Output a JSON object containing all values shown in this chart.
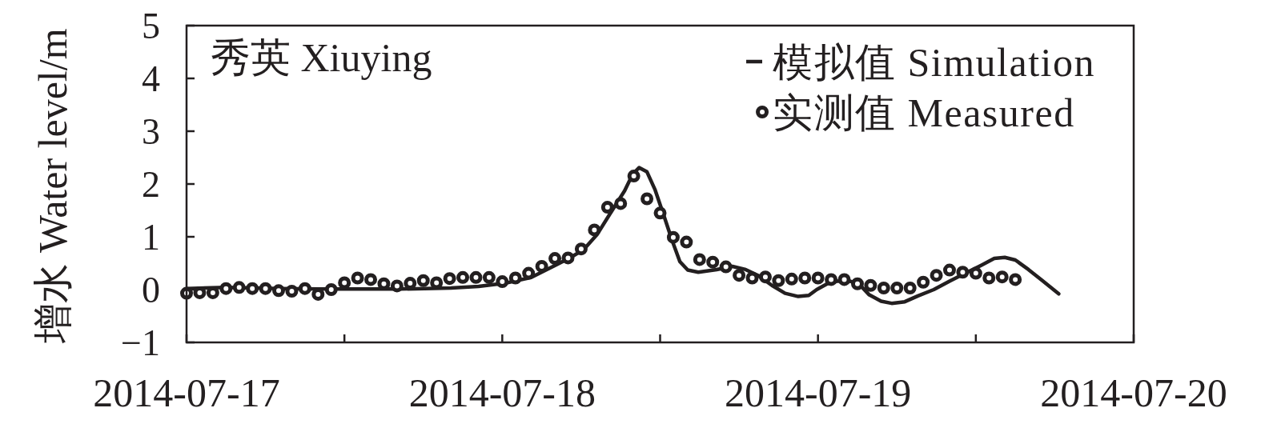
{
  "chart_data": {
    "type": "line",
    "title": "秀英 Xiuying",
    "ylabel": "增水 Water level/m",
    "xlim": [
      "2014-07-17T00:00",
      "2014-07-20T00:00"
    ],
    "xticks": [
      "2014-07-17",
      {
        "value": "2014-07-17T12:00",
        "label": null
      },
      "2014-07-18",
      {
        "value": "2014-07-18T12:00",
        "label": null
      },
      "2014-07-19",
      {
        "value": "2014-07-19T12:00",
        "label": null
      },
      "2014-07-20"
    ],
    "ylim": [
      -1,
      5
    ],
    "yticks": [
      {
        "value": -1,
        "label": "−1"
      },
      0,
      1,
      2,
      3,
      4,
      5
    ],
    "legend": "top right",
    "series": [
      {
        "name": "模拟值 Simulation",
        "type": "line",
        "color": "#231f20",
        "line_style": "solid",
        "x": [
          "2014-07-17T00:00",
          "2014-07-17T03:00",
          "2014-07-17T07:06",
          "2014-07-17T10:06",
          "2014-07-17T16:12",
          "2014-07-17T20:06",
          "2014-07-17T22:12",
          "2014-07-18T00:12",
          "2014-07-18T02:12",
          "2014-07-18T04:12",
          "2014-07-18T05:12",
          "2014-07-18T06:12",
          "2014-07-18T07:12",
          "2014-07-18T08:12",
          "2014-07-18T09:18",
          "2014-07-18T09:54",
          "2014-07-18T10:24",
          "2014-07-18T11:00",
          "2014-07-18T11:36",
          "2014-07-18T12:18",
          "2014-07-18T12:54",
          "2014-07-18T13:30",
          "2014-07-18T14:06",
          "2014-07-18T14:54",
          "2014-07-18T16:18",
          "2014-07-18T17:30",
          "2014-07-18T18:30",
          "2014-07-18T19:30",
          "2014-07-18T20:30",
          "2014-07-18T21:30",
          "2014-07-18T22:30",
          "2014-07-18T23:18",
          "2014-07-18T23:54",
          "2014-07-19T00:42",
          "2014-07-19T01:30",
          "2014-07-19T02:18",
          "2014-07-19T03:06",
          "2014-07-19T03:54",
          "2014-07-19T04:48",
          "2014-07-19T05:36",
          "2014-07-19T06:36",
          "2014-07-19T07:36",
          "2014-07-19T08:48",
          "2014-07-19T10:00",
          "2014-07-19T11:12",
          "2014-07-19T12:24",
          "2014-07-19T13:24",
          "2014-07-19T14:12",
          "2014-07-19T15:00",
          "2014-07-19T16:00",
          "2014-07-19T17:00",
          "2014-07-19T18:18"
        ],
        "values": [
          0.02,
          0.04,
          0.02,
          0.01,
          0.01,
          0.03,
          0.06,
          0.12,
          0.23,
          0.48,
          0.61,
          0.76,
          1.04,
          1.44,
          1.87,
          2.18,
          2.31,
          2.23,
          1.9,
          1.39,
          0.94,
          0.53,
          0.37,
          0.33,
          0.38,
          0.44,
          0.38,
          0.26,
          0.08,
          -0.07,
          -0.13,
          -0.11,
          0.0,
          0.11,
          0.16,
          0.17,
          0.11,
          -0.1,
          -0.22,
          -0.26,
          -0.23,
          -0.12,
          0.0,
          0.16,
          0.31,
          0.46,
          0.59,
          0.61,
          0.56,
          0.38,
          0.18,
          -0.08
        ]
      },
      {
        "name": "实测值 Measured",
        "type": "scatter",
        "color": "#231f20",
        "marker": "circle",
        "x": [
          "2014-07-17T00:00",
          "2014-07-17T01:00",
          "2014-07-17T02:00",
          "2014-07-17T03:00",
          "2014-07-17T04:00",
          "2014-07-17T05:00",
          "2014-07-17T06:00",
          "2014-07-17T07:00",
          "2014-07-17T08:00",
          "2014-07-17T09:00",
          "2014-07-17T10:00",
          "2014-07-17T11:00",
          "2014-07-17T12:00",
          "2014-07-17T13:00",
          "2014-07-17T14:00",
          "2014-07-17T15:00",
          "2014-07-17T16:00",
          "2014-07-17T17:00",
          "2014-07-17T18:00",
          "2014-07-17T19:00",
          "2014-07-17T20:00",
          "2014-07-17T21:00",
          "2014-07-17T22:00",
          "2014-07-17T23:00",
          "2014-07-18T00:00",
          "2014-07-18T01:00",
          "2014-07-18T02:00",
          "2014-07-18T03:00",
          "2014-07-18T04:00",
          "2014-07-18T05:00",
          "2014-07-18T06:00",
          "2014-07-18T07:00",
          "2014-07-18T08:00",
          "2014-07-18T09:00",
          "2014-07-18T10:00",
          "2014-07-18T11:00",
          "2014-07-18T12:00",
          "2014-07-18T13:00",
          "2014-07-18T14:00",
          "2014-07-18T15:00",
          "2014-07-18T16:00",
          "2014-07-18T17:00",
          "2014-07-18T18:00",
          "2014-07-18T19:00",
          "2014-07-18T20:00",
          "2014-07-18T21:00",
          "2014-07-18T22:00",
          "2014-07-18T23:00",
          "2014-07-19T00:00",
          "2014-07-19T01:00",
          "2014-07-19T02:00",
          "2014-07-19T03:00",
          "2014-07-19T04:00",
          "2014-07-19T05:00",
          "2014-07-19T06:00",
          "2014-07-19T07:00",
          "2014-07-19T08:00",
          "2014-07-19T09:00",
          "2014-07-19T10:00",
          "2014-07-19T11:00",
          "2014-07-19T12:00",
          "2014-07-19T13:00",
          "2014-07-19T14:00",
          "2014-07-19T15:00"
        ],
        "values": [
          -0.07,
          -0.06,
          -0.06,
          0.02,
          0.04,
          0.02,
          0.02,
          -0.02,
          -0.03,
          0.02,
          -0.09,
          0.0,
          0.13,
          0.22,
          0.19,
          0.11,
          0.07,
          0.12,
          0.17,
          0.13,
          0.21,
          0.23,
          0.23,
          0.23,
          0.15,
          0.22,
          0.31,
          0.44,
          0.59,
          0.6,
          0.77,
          1.13,
          1.56,
          1.63,
          2.15,
          1.72,
          1.45,
          0.99,
          0.9,
          0.57,
          0.52,
          0.43,
          0.27,
          0.22,
          0.24,
          0.17,
          0.2,
          0.22,
          0.22,
          0.19,
          0.19,
          0.11,
          0.08,
          0.03,
          0.03,
          0.03,
          0.14,
          0.27,
          0.37,
          0.33,
          0.31,
          0.22,
          0.24,
          0.19
        ]
      }
    ]
  }
}
